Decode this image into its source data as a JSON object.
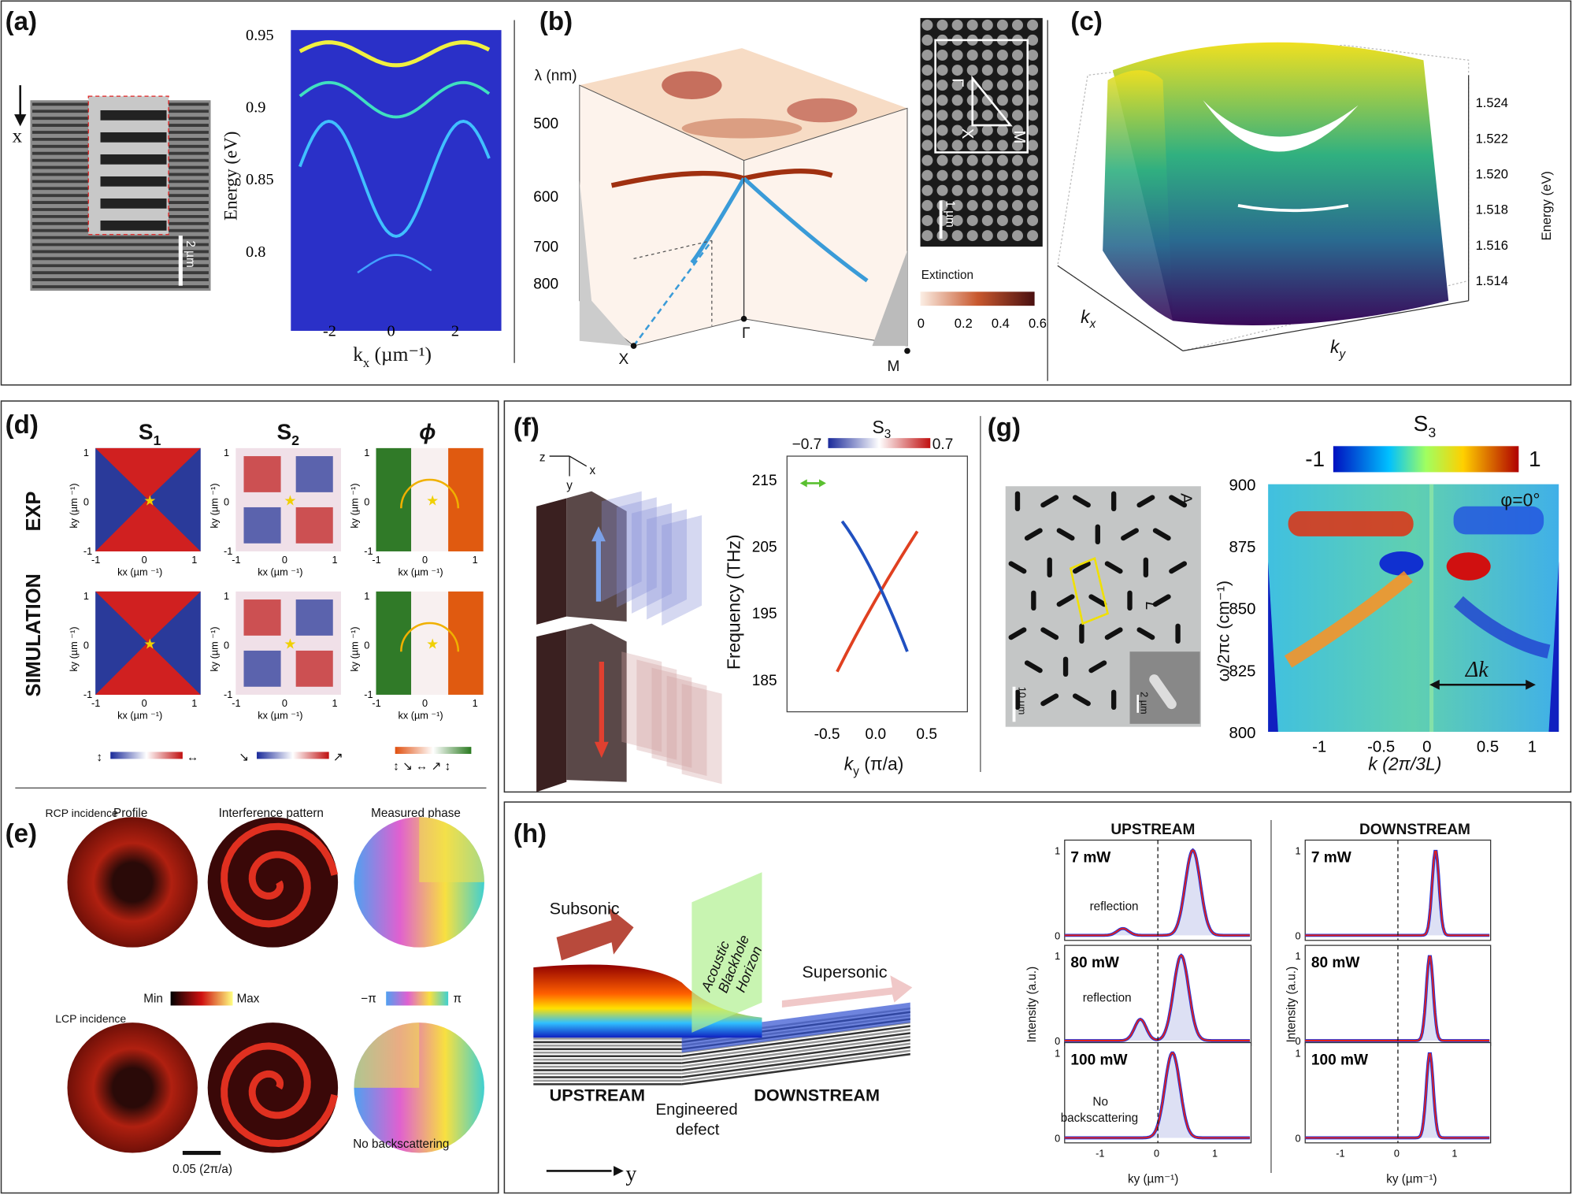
{
  "panels": {
    "a": {
      "label": "(a)",
      "arrow_label": "x",
      "scale_bar": "2 µm",
      "ylabel": "Energy (eV)",
      "xlabel": "k",
      "xlabel_sub": "x",
      "xlabel_unit": " (µm⁻¹)",
      "yticks": [
        "0.95",
        "0.9",
        "0.85",
        "0.8"
      ],
      "xticks": [
        "-2",
        "0",
        "2"
      ]
    },
    "b": {
      "label": "(b)",
      "ylabel": "λ (nm)",
      "yticks": [
        "500",
        "600",
        "700",
        "800"
      ],
      "points": [
        "X",
        "Γ",
        "M"
      ],
      "inset_points": [
        "Γ",
        "X",
        "M"
      ],
      "inset_scale": "1 µm",
      "colorbar_title": "Extinction",
      "colorbar_ticks": [
        "0",
        "0.2",
        "0.4",
        "0.6"
      ]
    },
    "c": {
      "label": "(c)",
      "zlabel": "Energy (eV)",
      "zticks": [
        "1.524",
        "1.522",
        "1.520",
        "1.518",
        "1.516",
        "1.514"
      ],
      "xlabel": "k",
      "xlabel_sub": "x",
      "ylabel": "k",
      "ylabel_sub": "y"
    },
    "d": {
      "label": "(d)",
      "columns": [
        "S",
        "S",
        "ϕ"
      ],
      "column_subs": [
        "1",
        "2",
        ""
      ],
      "rows": [
        "EXP",
        "SIMULATION"
      ],
      "ylabel": "k",
      "ylabel_sub": "y",
      "xlabel": "k",
      "xlabel_sub": "x",
      "axis_unit": " (µm ⁻¹)",
      "ticks": [
        "-1",
        "0",
        "1"
      ]
    },
    "e": {
      "label": "(e)",
      "rcp": "RCP incidence",
      "lcp": "LCP incidence",
      "headers": [
        "Profile",
        "Interference pattern",
        "Measured phase"
      ],
      "min": "Min",
      "max": "Max",
      "neg_pi": "−π",
      "pi": "π",
      "scale": "0.05 (2π/a)",
      "note": "No backscattering"
    },
    "f": {
      "label": "(f)",
      "axes": [
        "z",
        "y",
        "x"
      ],
      "cb_title": "S",
      "cb_title_sub": "3",
      "cb_min": "−0.7",
      "cb_max": "0.7",
      "ylabel": "Frequency (THz)",
      "xlabel": "k",
      "xlabel_sub": "y",
      "xlabel_unit": " (π/a)",
      "yticks": [
        "215",
        "205",
        "195",
        "185"
      ],
      "xticks": [
        "-0.5",
        "0.0",
        "0.5"
      ]
    },
    "g": {
      "label": "(g)",
      "sem_label": "A",
      "lattice_label": "L",
      "scale_main": "10 µm",
      "scale_inset": "2 µm",
      "cb_title": "S",
      "cb_title_sub": "3",
      "cb_min": "-1",
      "cb_max": "1",
      "angle": "φ=0°",
      "delta_k": "Δk",
      "ylabel": "ω/2πc (cm⁻¹)",
      "xlabel": "k (2π/3L)",
      "yticks": [
        "900",
        "875",
        "850",
        "825",
        "800"
      ],
      "xticks": [
        "-1",
        "-0.5",
        "0",
        "0.5",
        "1"
      ]
    },
    "h": {
      "label": "(h)",
      "subsonic": "Subsonic",
      "horizon": [
        "Acoustic",
        "Blackhole",
        "Horizon"
      ],
      "supersonic": "Supersonic",
      "upstream": "UPSTREAM",
      "downstream": "DOWNSTREAM",
      "defect": [
        "Engineered",
        "defect"
      ],
      "axis": "y",
      "plot_titles": [
        "UPSTREAM",
        "DOWNSTREAM"
      ],
      "powers": [
        "7 mW",
        "80 mW",
        "100 mW"
      ],
      "annotations": [
        "reflection",
        "reflection",
        "No",
        "backscattering"
      ],
      "ylabel": "Intensity (a.u.)",
      "xlabel": "k",
      "xlabel_sub": "y",
      "xlabel_unit": " (µm⁻¹)",
      "yticks": [
        "1",
        "0"
      ],
      "xticks": [
        "-1",
        "0",
        "1"
      ]
    }
  },
  "chart_data": [
    {
      "type": "line",
      "title": "UPSTREAM",
      "xlabel": "ky (µm⁻¹)",
      "ylabel": "Intensity (a.u.)",
      "xlim": [
        -1.6,
        1.6
      ],
      "ylim": [
        0,
        1
      ],
      "series": [
        {
          "name": "7 mW",
          "peak_center": 0.6,
          "reflection_center": -0.6,
          "reflection_height": 0.08
        },
        {
          "name": "80 mW",
          "peak_center": 0.4,
          "reflection_center": -0.3,
          "reflection_height": 0.25
        },
        {
          "name": "100 mW",
          "peak_center": 0.25,
          "reflection_center": null,
          "reflection_height": 0
        }
      ]
    },
    {
      "type": "line",
      "title": "DOWNSTREAM",
      "xlabel": "ky (µm⁻¹)",
      "ylabel": "Intensity (a.u.)",
      "xlim": [
        -1.6,
        1.6
      ],
      "ylim": [
        0,
        1
      ],
      "series": [
        {
          "name": "7 mW",
          "peak_center": 0.65
        },
        {
          "name": "80 mW",
          "peak_center": 0.55
        },
        {
          "name": "100 mW",
          "peak_center": 0.55
        }
      ]
    }
  ],
  "colors": {
    "plot_blue": "#2a30c8",
    "fit_red": "#e0201c",
    "data_blue": "#2233dd",
    "accent_cyan": "#3a9bd8"
  }
}
